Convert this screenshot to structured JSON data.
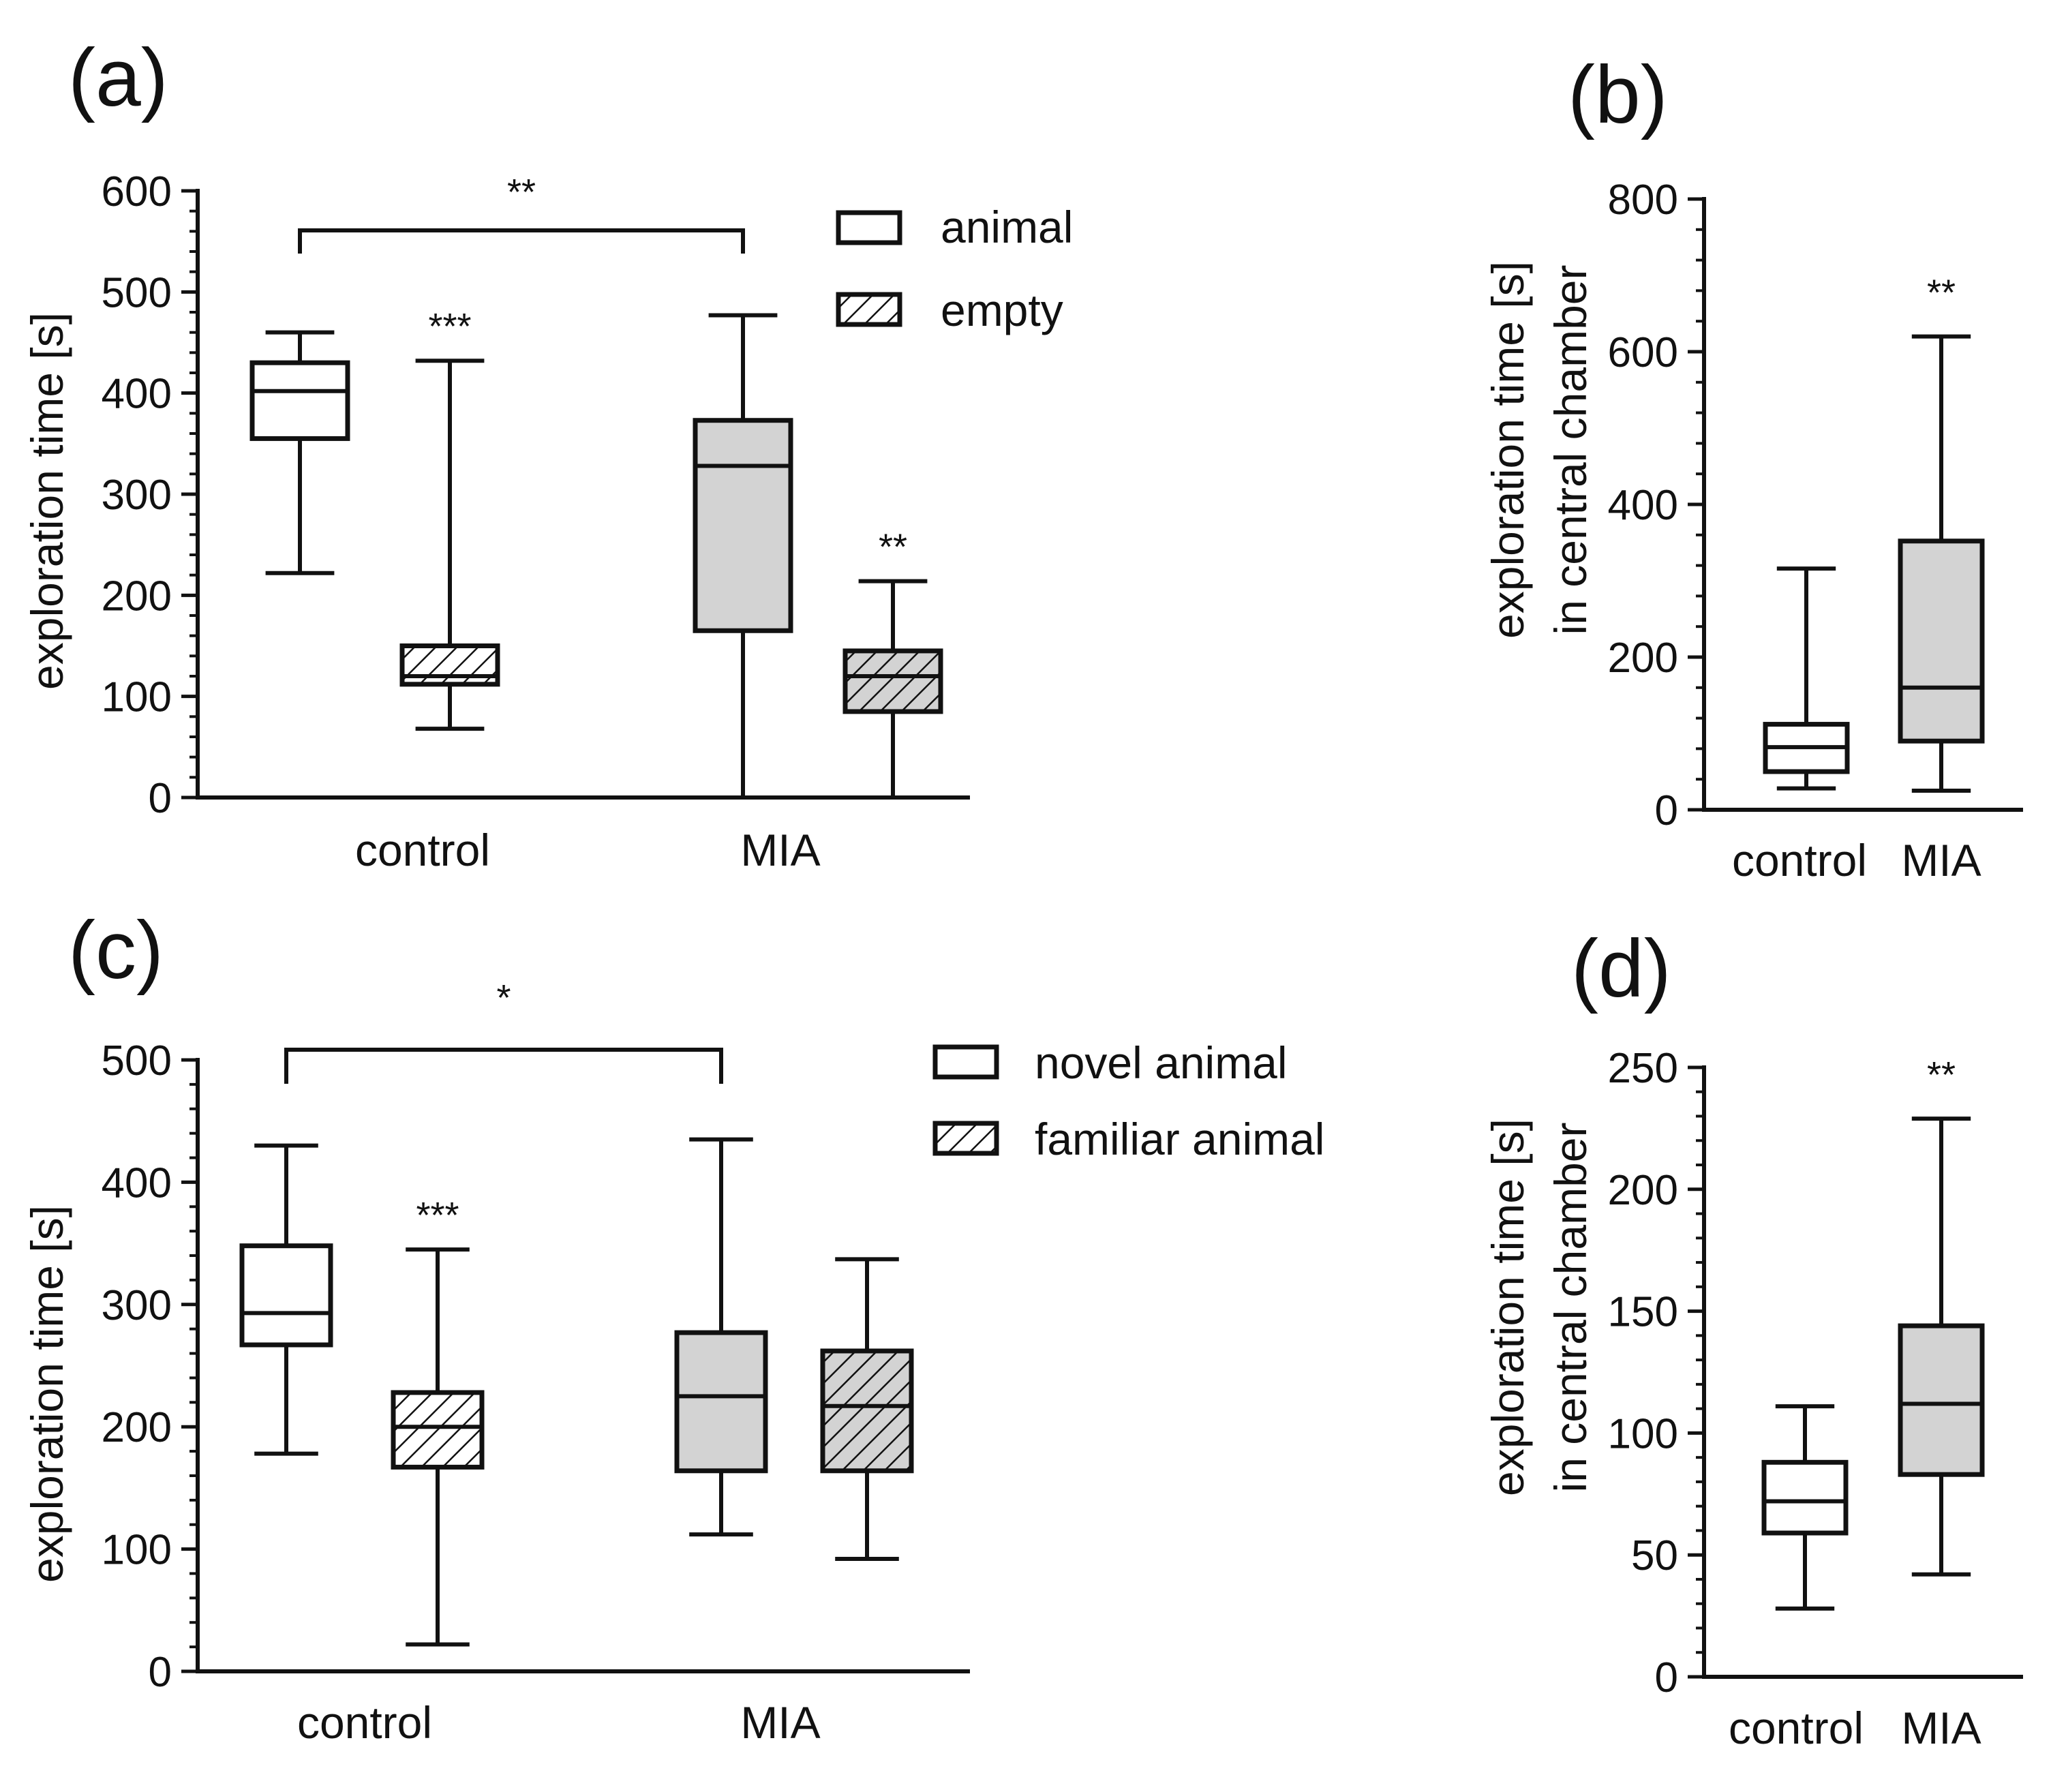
{
  "colors": {
    "white_fill": "#ffffff",
    "grey_fill": "#d3d3d3",
    "line": "#111111"
  },
  "chart_data": [
    {
      "panel": "(a)",
      "type": "box",
      "ylabel": [
        "exploration time [s]"
      ],
      "ylim": [
        0,
        600
      ],
      "yticks": [
        0,
        100,
        200,
        300,
        400,
        500,
        600
      ],
      "categories": [
        "control",
        "MIA"
      ],
      "legend": [
        {
          "name": "animal",
          "pattern": "open"
        },
        {
          "name": "empty",
          "pattern": "hatched"
        }
      ],
      "boxes": [
        {
          "group": "control",
          "series": "animal",
          "fill": "white",
          "hatch": false,
          "min": 222,
          "q1": 355,
          "median": 402,
          "q3": 430,
          "max": 460
        },
        {
          "group": "control",
          "series": "empty",
          "fill": "white",
          "hatch": true,
          "min": 68,
          "q1": 112,
          "median": 120,
          "q3": 150,
          "max": 432,
          "sig": "***"
        },
        {
          "group": "MIA",
          "series": "animal",
          "fill": "grey",
          "hatch": false,
          "min": 0,
          "q1": 165,
          "median": 328,
          "q3": 373,
          "max": 477
        },
        {
          "group": "MIA",
          "series": "empty",
          "fill": "grey",
          "hatch": true,
          "min": 0,
          "q1": 85,
          "median": 120,
          "q3": 145,
          "max": 214,
          "sig": "**"
        }
      ],
      "bracket": {
        "from": 0,
        "to": 2,
        "y": 560,
        "label": "**"
      }
    },
    {
      "panel": "(b)",
      "type": "box",
      "ylabel": [
        "exploration time [s]",
        "in central chamber"
      ],
      "ylim": [
        0,
        800
      ],
      "yticks": [
        0,
        200,
        400,
        600,
        800
      ],
      "categories": [
        "control",
        "MIA"
      ],
      "boxes": [
        {
          "group": "control",
          "fill": "white",
          "hatch": false,
          "min": 28,
          "q1": 50,
          "median": 82,
          "q3": 112,
          "max": 316
        },
        {
          "group": "MIA",
          "fill": "grey",
          "hatch": false,
          "min": 25,
          "q1": 90,
          "median": 160,
          "q3": 352,
          "max": 620,
          "sig": "**"
        }
      ]
    },
    {
      "panel": "(c)",
      "type": "box",
      "ylabel": [
        "exploration time [s]"
      ],
      "ylim": [
        0,
        500
      ],
      "yticks": [
        0,
        100,
        200,
        300,
        400,
        500
      ],
      "categories": [
        "control",
        "MIA"
      ],
      "legend": [
        {
          "name": "novel animal",
          "pattern": "open"
        },
        {
          "name": "familiar animal",
          "pattern": "hatched"
        }
      ],
      "boxes": [
        {
          "group": "control",
          "series": "novel animal",
          "fill": "white",
          "hatch": false,
          "min": 178,
          "q1": 267,
          "median": 293,
          "q3": 348,
          "max": 430
        },
        {
          "group": "control",
          "series": "familiar animal",
          "fill": "white",
          "hatch": true,
          "min": 22,
          "q1": 167,
          "median": 200,
          "q3": 228,
          "max": 345,
          "sig": "***"
        },
        {
          "group": "MIA",
          "series": "novel animal",
          "fill": "grey",
          "hatch": false,
          "min": 112,
          "q1": 164,
          "median": 225,
          "q3": 277,
          "max": 435
        },
        {
          "group": "MIA",
          "series": "familiar animal",
          "fill": "grey",
          "hatch": true,
          "min": 92,
          "q1": 164,
          "median": 217,
          "q3": 262,
          "max": 337
        }
      ],
      "bracket": {
        "from": 0,
        "to": 2,
        "y": 508,
        "label": "*"
      }
    },
    {
      "panel": "(d)",
      "type": "box",
      "ylabel": [
        "exploration time [s]",
        "in central chamber"
      ],
      "ylim": [
        0,
        250
      ],
      "yticks": [
        0,
        50,
        100,
        150,
        200,
        250
      ],
      "categories": [
        "control",
        "MIA"
      ],
      "boxes": [
        {
          "group": "control",
          "fill": "white",
          "hatch": false,
          "min": 28,
          "q1": 59,
          "median": 72,
          "q3": 88,
          "max": 111
        },
        {
          "group": "MIA",
          "fill": "grey",
          "hatch": false,
          "min": 42,
          "q1": 83,
          "median": 112,
          "q3": 144,
          "max": 229,
          "sig": "**"
        }
      ]
    }
  ]
}
